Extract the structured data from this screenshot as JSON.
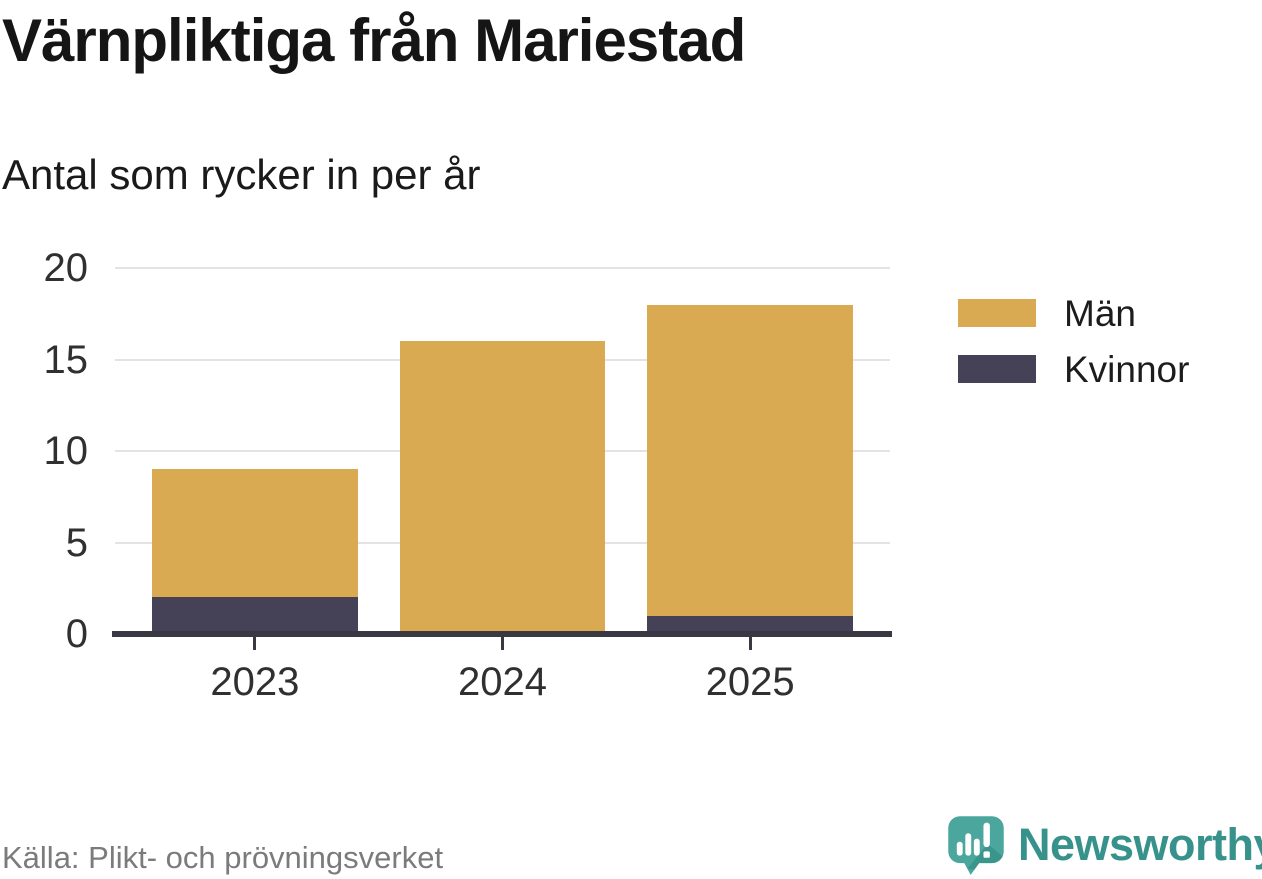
{
  "header": {
    "title": "Värnpliktiga från Mariestad",
    "subtitle": "Antal som rycker in per år"
  },
  "chart_data": {
    "type": "bar",
    "stacked": true,
    "title": "Värnpliktiga från Mariestad",
    "subtitle": "Antal som rycker in per år",
    "categories": [
      "2023",
      "2024",
      "2025"
    ],
    "series": [
      {
        "name": "Män",
        "color": "#D9AA51",
        "values": [
          7,
          16,
          17
        ]
      },
      {
        "name": "Kvinnor",
        "color": "#454258",
        "values": [
          2,
          0,
          1
        ]
      }
    ],
    "stack_bottom_to_top": [
      "Kvinnor",
      "Män"
    ],
    "stacked_totals": [
      9,
      16,
      18
    ],
    "xlabel": "",
    "ylabel": "",
    "ylim": [
      0,
      20
    ],
    "yticks": [
      0,
      5,
      10,
      15,
      20
    ],
    "grid": "horizontal-only",
    "legend_position": "right",
    "axis_color": "#3A3842",
    "gridline_color": "#E3E3E3"
  },
  "legend": {
    "items": [
      {
        "label": "Män",
        "color": "#D9AA51"
      },
      {
        "label": "Kvinnor",
        "color": "#454258"
      }
    ]
  },
  "footer": {
    "source": "Källa: Plikt- och prövningsverket",
    "brand_name": "Newsworthy",
    "brand_color": "#37928B",
    "logo_icon": "newsworthy-chart-bubble-icon"
  }
}
